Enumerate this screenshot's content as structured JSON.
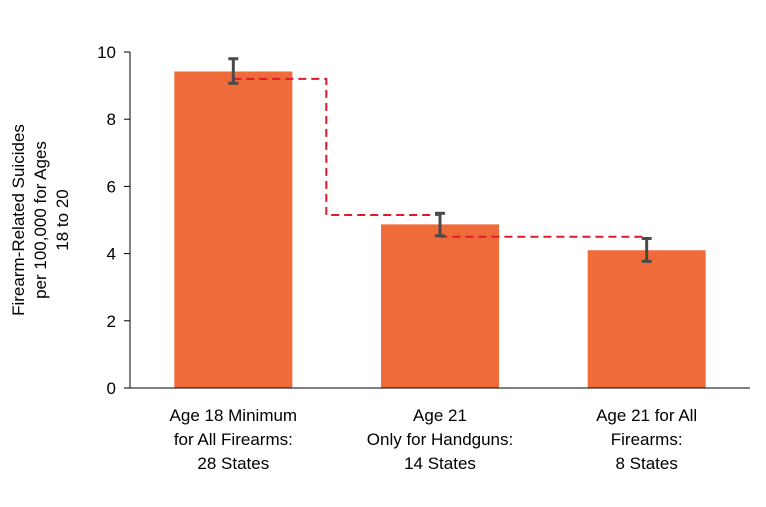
{
  "chart_data": {
    "type": "bar",
    "categories": [
      [
        "Age 18 Minimum",
        "for All Firearms:",
        "28 States"
      ],
      [
        "Age 21",
        "Only  for Handguns:",
        "14 States"
      ],
      [
        "Age 21 for All",
        "Firearms:",
        "8 States"
      ]
    ],
    "values": [
      9.42,
      4.87,
      4.1
    ],
    "error_bars": [
      {
        "low": 9.07,
        "high": 9.8
      },
      {
        "low": 4.53,
        "high": 5.2
      },
      {
        "low": 3.77,
        "high": 4.45
      }
    ],
    "reference_line": {
      "style": "dashed",
      "color": "#e0192b",
      "points": [
        [
          0.0,
          9.2
        ],
        [
          0.45,
          9.2
        ],
        [
          0.45,
          5.15
        ],
        [
          1.0,
          5.15
        ],
        [
          1.0,
          4.5
        ],
        [
          2.0,
          4.5
        ]
      ]
    },
    "ylabel": [
      "Firearm-Related Suicides",
      "per 100,000 for Ages",
      "18 to 20"
    ],
    "xlabel": "",
    "ylim": [
      0,
      10
    ],
    "yticks": [
      0,
      2,
      4,
      6,
      8,
      10
    ],
    "ytick_labels": [
      "0",
      "2",
      "4",
      "6",
      "8",
      "10"
    ],
    "grid": false,
    "colors": {
      "bar": "#ef6b3a",
      "error_bar": "#4a4a4a",
      "axis": "#000000"
    }
  }
}
